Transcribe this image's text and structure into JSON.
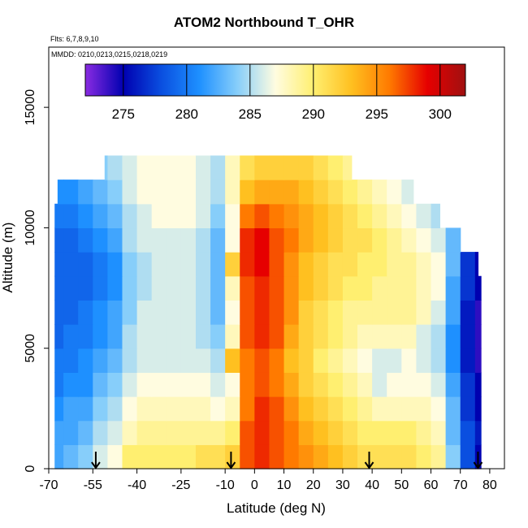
{
  "chart_data": {
    "type": "heatmap",
    "title": "ATOM2 Northbound T_OHR",
    "flights_note": "Flts: 6,7,8,9,10",
    "dates_note": "MMDD: 0210,0213,0215,0218,0219",
    "xlabel": "Latitude (deg N)",
    "ylabel": "Altitude (m)",
    "xlim": [
      -70,
      85
    ],
    "ylim": [
      0,
      17500
    ],
    "xticks": [
      -70,
      -55,
      -40,
      -25,
      -10,
      0,
      10,
      20,
      30,
      40,
      50,
      60,
      70,
      80
    ],
    "xtick_labels": [
      "-70",
      "-55",
      "-40",
      "-25",
      "-10",
      "0",
      "10",
      "20",
      "30",
      "40",
      "50",
      "60",
      "70",
      "80"
    ],
    "yticks": [
      0,
      5000,
      10000,
      15000
    ],
    "ytick_labels": [
      "0",
      "5000",
      "10000",
      "15000"
    ],
    "colorbar": {
      "range": [
        272,
        302
      ],
      "ticks": [
        275,
        280,
        285,
        290,
        295,
        300
      ],
      "tick_labels": [
        "275",
        "280",
        "285",
        "290",
        "295",
        "300"
      ],
      "colors": [
        "#8a2be2",
        "#0000b0",
        "#0a4fe0",
        "#1e90ff",
        "#87cefa",
        "#fffce0",
        "#ffef70",
        "#ffc020",
        "#ff7a00",
        "#e60000",
        "#a01010"
      ]
    },
    "latitude_bins": [
      -67.5,
      -62.5,
      -57.5,
      -52.5,
      -47.5,
      -42.5,
      -37.5,
      -32.5,
      -27.5,
      -22.5,
      -17.5,
      -12.5,
      -7.5,
      -2.5,
      2.5,
      7.5,
      12.5,
      17.5,
      22.5,
      27.5,
      32.5,
      37.5,
      42.5,
      47.5,
      52.5,
      57.5,
      62.5,
      67.5,
      72.5,
      77.5
    ],
    "altitude_bins": [
      500,
      1500,
      2500,
      3500,
      4500,
      5500,
      6500,
      7500,
      8500,
      9500,
      10500,
      11500,
      12500
    ],
    "temperature_grid": [
      [
        282,
        283,
        284,
        286,
        287,
        290,
        290,
        290,
        290,
        290,
        291,
        291,
        292,
        297,
        298,
        297,
        296,
        295,
        294,
        293,
        292,
        291,
        291,
        291,
        291,
        290,
        289,
        284,
        278,
        275
      ],
      [
        282,
        282,
        283,
        285,
        286,
        288,
        289,
        289,
        289,
        289,
        289,
        289,
        290,
        297,
        298,
        297,
        296,
        294,
        293,
        292,
        291,
        290,
        290,
        290,
        290,
        289,
        288,
        283,
        278,
        276
      ],
      [
        281,
        282,
        282,
        284,
        285,
        287,
        288,
        288,
        288,
        288,
        288,
        287,
        288,
        296,
        298,
        297,
        295,
        293,
        292,
        291,
        290,
        289,
        288,
        288,
        288,
        288,
        287,
        283,
        277,
        275
      ],
      [
        280,
        281,
        281,
        283,
        284,
        286,
        287,
        287,
        287,
        287,
        287,
        286,
        287,
        296,
        297,
        296,
        294,
        292,
        291,
        290,
        289,
        288,
        286,
        287,
        287,
        287,
        286,
        282,
        277,
        275
      ],
      [
        280,
        280,
        281,
        282,
        283,
        285,
        286,
        286,
        286,
        286,
        286,
        285,
        293,
        296,
        297,
        296,
        293,
        292,
        290,
        289,
        288,
        287,
        286,
        286,
        287,
        286,
        285,
        281,
        276,
        274
      ],
      [
        279,
        280,
        280,
        281,
        282,
        285,
        286,
        286,
        286,
        286,
        285,
        284,
        288,
        297,
        298,
        297,
        294,
        292,
        291,
        290,
        289,
        288,
        288,
        288,
        288,
        286,
        285,
        281,
        276,
        274
      ],
      [
        279,
        279,
        280,
        281,
        282,
        284,
        286,
        286,
        286,
        286,
        285,
        283,
        287,
        297,
        298,
        297,
        295,
        292,
        291,
        290,
        289,
        289,
        289,
        289,
        289,
        288,
        286,
        282,
        276,
        274
      ],
      [
        279,
        279,
        279,
        280,
        281,
        284,
        285,
        286,
        286,
        286,
        285,
        283,
        288,
        297,
        298,
        297,
        295,
        293,
        292,
        291,
        290,
        290,
        289,
        289,
        289,
        288,
        287,
        282,
        277,
        275
      ],
      [
        279,
        279,
        279,
        280,
        281,
        284,
        285,
        286,
        286,
        286,
        285,
        283,
        292,
        298,
        299,
        297,
        295,
        293,
        292,
        291,
        291,
        290,
        290,
        289,
        289,
        288,
        287,
        283,
        277,
        275
      ],
      [
        279,
        279,
        280,
        281,
        282,
        285,
        286,
        286,
        286,
        286,
        285,
        283,
        287,
        298,
        299,
        297,
        296,
        294,
        293,
        292,
        291,
        291,
        290,
        289,
        288,
        287,
        286,
        283,
        278,
        276
      ],
      [
        280,
        280,
        281,
        282,
        283,
        285,
        286,
        287,
        287,
        287,
        286,
        284,
        287,
        296,
        297,
        296,
        295,
        294,
        293,
        292,
        291,
        290,
        289,
        288,
        287,
        286,
        285,
        284,
        280,
        278
      ],
      [
        281,
        281,
        282,
        283,
        284,
        286,
        287,
        287,
        287,
        287,
        286,
        285,
        288,
        293,
        294,
        294,
        294,
        293,
        292,
        291,
        290,
        289,
        288,
        287,
        286,
        285,
        284,
        283,
        282,
        282
      ],
      [
        282,
        282,
        283,
        284,
        285,
        286,
        287,
        287,
        287,
        287,
        286,
        285,
        288,
        291,
        292,
        292,
        292,
        292,
        291,
        290,
        289,
        288,
        287,
        286,
        286,
        285,
        284,
        284,
        284,
        284
      ]
    ],
    "latitude_coverage": [
      [
        -68,
        77
      ],
      [
        -68,
        77
      ],
      [
        -68,
        77
      ],
      [
        -68,
        77
      ],
      [
        -68,
        77
      ],
      [
        -68,
        77
      ],
      [
        -68,
        77
      ],
      [
        -68,
        77
      ],
      [
        -68,
        76
      ],
      [
        -68,
        70
      ],
      [
        -68,
        63
      ],
      [
        -67,
        54
      ],
      [
        -51,
        33
      ]
    ],
    "flight_start_arrows_lat": [
      -54,
      -8,
      39,
      76
    ],
    "grid": false,
    "legend": "colorbar top"
  }
}
